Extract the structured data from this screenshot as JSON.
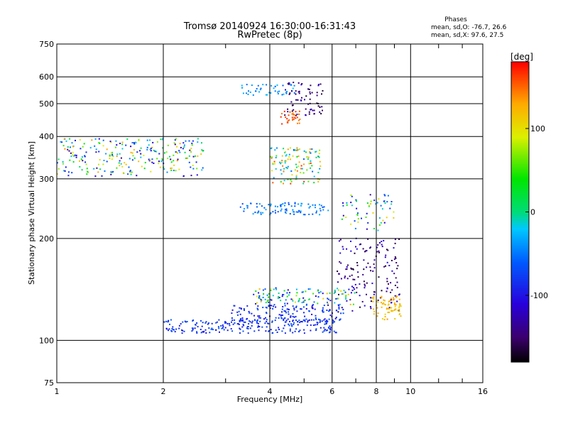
{
  "chart_data": {
    "type": "scatter",
    "title": "Tromsø 20140924 16:30:00-16:31:43",
    "subtitle": "RwPretec (8p)",
    "stats": {
      "heading": "Phases",
      "line1": "mean, sd,O: -76.7, 26.6",
      "line2": "mean, sd,X:  97.6, 27.5"
    },
    "xlabel": "Frequency [MHz]",
    "ylabel": "Stationary phase Virtual Height [km]",
    "xscale": "log",
    "yscale": "log",
    "xlim": [
      1,
      16
    ],
    "ylim": [
      75,
      750
    ],
    "xticks": [
      1,
      2,
      4,
      6,
      8,
      10,
      16
    ],
    "xtick_labels": [
      "1",
      "2",
      "4",
      "6",
      "8",
      "10",
      "16"
    ],
    "yticks": [
      75,
      100,
      200,
      300,
      400,
      500,
      600,
      750
    ],
    "ytick_labels": [
      "75",
      "100",
      "200",
      "300",
      "400",
      "500",
      "600",
      "750"
    ],
    "grid": true,
    "colorbar": {
      "label": "[deg]",
      "range": [
        -180,
        180
      ],
      "ticks": [
        100,
        0,
        -100
      ],
      "tick_labels": [
        "100",
        "0",
        "-100"
      ]
    },
    "traces": [
      {
        "f_start": 1.0,
        "f_end": 2.6,
        "h": 350,
        "spread": 45,
        "phase_min": -150,
        "phase_max": 140,
        "n": 260
      },
      {
        "f_start": 3.3,
        "f_end": 4.7,
        "h": 550,
        "spread": 20,
        "phase_min": -60,
        "phase_max": -20,
        "n": 45
      },
      {
        "f_start": 4.4,
        "f_end": 5.7,
        "h": 520,
        "spread": 60,
        "phase_min": -170,
        "phase_max": -120,
        "n": 70
      },
      {
        "f_start": 4.3,
        "f_end": 4.9,
        "h": 455,
        "spread": 20,
        "phase_min": 140,
        "phase_max": 170,
        "n": 30
      },
      {
        "f_start": 4.0,
        "f_end": 5.6,
        "h": 330,
        "spread": 40,
        "phase_min": -60,
        "phase_max": 170,
        "n": 120
      },
      {
        "f_start": 3.3,
        "f_end": 5.9,
        "h": 245,
        "spread": 10,
        "phase_min": -70,
        "phase_max": -30,
        "n": 90
      },
      {
        "f_start": 2.0,
        "f_end": 6.2,
        "h": 110,
        "spread": 5,
        "phase_min": -100,
        "phase_max": -60,
        "n": 220
      },
      {
        "f_start": 3.1,
        "f_end": 6.5,
        "h": 120,
        "spread": 7,
        "phase_min": -110,
        "phase_max": -60,
        "n": 160
      },
      {
        "f_start": 3.6,
        "f_end": 7.0,
        "h": 135,
        "spread": 8,
        "phase_min": -120,
        "phase_max": 130,
        "n": 120
      },
      {
        "f_start": 6.2,
        "f_end": 9.4,
        "h": 160,
        "spread": 40,
        "phase_min": -170,
        "phase_max": -100,
        "n": 150
      },
      {
        "f_start": 7.8,
        "f_end": 9.4,
        "h": 125,
        "spread": 10,
        "phase_min": 100,
        "phase_max": 140,
        "n": 70
      },
      {
        "f_start": 6.4,
        "f_end": 9.0,
        "h": 240,
        "spread": 30,
        "phase_min": -140,
        "phase_max": 120,
        "n": 60
      }
    ]
  }
}
